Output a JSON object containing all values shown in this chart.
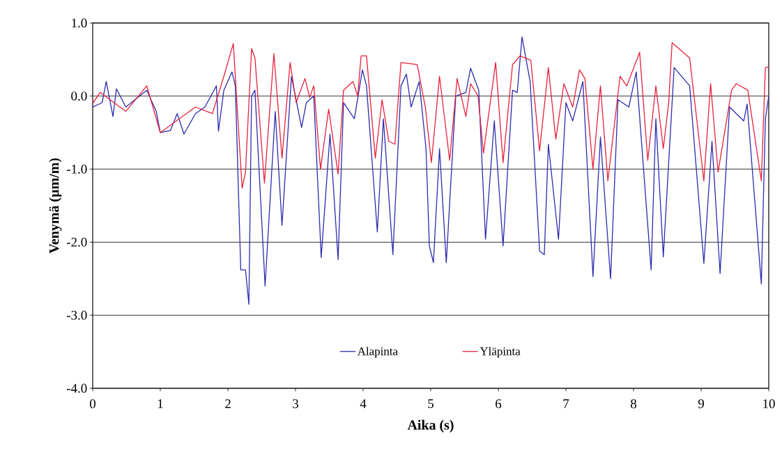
{
  "chart_data": {
    "type": "line",
    "xlabel": "Aika (s)",
    "ylabel": "Venymä (µm/m)",
    "xlim": [
      0,
      10
    ],
    "xticks": [
      0,
      1,
      2,
      3,
      4,
      5,
      6,
      7,
      8,
      9,
      10
    ],
    "ylim": [
      -4,
      1
    ],
    "yticks": [
      {
        "value": -4,
        "label": "-4.0"
      },
      {
        "value": -3,
        "label": "-3.0"
      },
      {
        "value": -2,
        "label": "-2.0"
      },
      {
        "value": -1,
        "label": "-1.0"
      },
      {
        "value": 0,
        "label": "0.0"
      },
      {
        "value": 1,
        "label": "1.0"
      }
    ],
    "grid": "y",
    "legend": "bottom",
    "marker": "none",
    "line_style": "solid",
    "series": [
      {
        "name": "Alapinta",
        "color": "#2b2bb0",
        "x": [
          0.0,
          0.14,
          0.2,
          0.3,
          0.35,
          0.49,
          0.8,
          0.94,
          1.0,
          1.15,
          1.25,
          1.35,
          1.52,
          1.66,
          1.83,
          1.86,
          1.94,
          2.06,
          2.11,
          2.19,
          2.26,
          2.31,
          2.35,
          2.4,
          2.55,
          2.7,
          2.8,
          2.94,
          3.09,
          3.16,
          3.27,
          3.38,
          3.51,
          3.63,
          3.71,
          3.87,
          3.99,
          4.05,
          4.21,
          4.3,
          4.44,
          4.56,
          4.64,
          4.71,
          4.83,
          4.93,
          4.98,
          5.04,
          5.13,
          5.23,
          5.37,
          5.52,
          5.59,
          5.71,
          5.81,
          5.94,
          6.07,
          6.21,
          6.28,
          6.35,
          6.47,
          6.61,
          6.68,
          6.74,
          6.89,
          7.0,
          7.1,
          7.25,
          7.4,
          7.51,
          7.66,
          7.77,
          7.93,
          8.04,
          8.26,
          8.33,
          8.44,
          8.6,
          8.83,
          9.04,
          9.16,
          9.28,
          9.42,
          9.63,
          9.68,
          9.89,
          9.95,
          10.0
        ],
        "values": [
          -0.15,
          -0.09,
          0.2,
          -0.28,
          0.1,
          -0.15,
          0.08,
          -0.21,
          -0.5,
          -0.47,
          -0.24,
          -0.52,
          -0.24,
          -0.15,
          0.14,
          -0.48,
          0.08,
          0.33,
          0.14,
          -2.38,
          -2.38,
          -2.85,
          0.0,
          0.08,
          -2.6,
          -0.21,
          -1.77,
          0.27,
          -0.43,
          -0.09,
          0.0,
          -2.21,
          -0.52,
          -2.24,
          -0.09,
          -0.31,
          0.36,
          0.14,
          -1.86,
          -0.31,
          -2.17,
          0.14,
          0.3,
          -0.15,
          0.2,
          -0.72,
          -2.05,
          -2.28,
          -0.72,
          -2.28,
          0.0,
          0.05,
          0.38,
          0.08,
          -1.96,
          -0.34,
          -2.05,
          0.08,
          0.05,
          0.81,
          0.2,
          -2.12,
          -2.17,
          -0.66,
          -1.96,
          -0.09,
          -0.34,
          0.2,
          -2.47,
          -0.56,
          -2.5,
          -0.05,
          -0.15,
          0.33,
          -2.38,
          -0.31,
          -2.2,
          0.39,
          0.14,
          -2.29,
          -0.62,
          -2.43,
          -0.15,
          -0.34,
          -0.11,
          -2.57,
          -0.31,
          0.0
        ]
      },
      {
        "name": "Yläpinta",
        "color": "#e8203a",
        "x": [
          0.0,
          0.11,
          0.49,
          0.8,
          1.0,
          1.52,
          1.77,
          1.94,
          2.08,
          2.21,
          2.26,
          2.35,
          2.4,
          2.54,
          2.68,
          2.8,
          2.92,
          3.01,
          3.14,
          3.21,
          3.27,
          3.37,
          3.49,
          3.63,
          3.71,
          3.85,
          3.92,
          3.97,
          4.05,
          4.18,
          4.28,
          4.38,
          4.47,
          4.56,
          4.8,
          4.92,
          5.01,
          5.13,
          5.28,
          5.39,
          5.52,
          5.59,
          5.7,
          5.78,
          5.96,
          6.07,
          6.21,
          6.32,
          6.48,
          6.61,
          6.74,
          6.85,
          6.97,
          7.1,
          7.2,
          7.28,
          7.4,
          7.51,
          7.62,
          7.8,
          7.9,
          8.09,
          8.21,
          8.33,
          8.44,
          8.52,
          8.57,
          8.83,
          9.04,
          9.14,
          9.25,
          9.45,
          9.52,
          9.69,
          9.89,
          9.95,
          10.0
        ],
        "values": [
          -0.1,
          0.05,
          -0.21,
          0.14,
          -0.5,
          -0.15,
          -0.24,
          0.27,
          0.72,
          -1.26,
          -1.04,
          0.65,
          0.52,
          -1.19,
          0.58,
          -0.85,
          0.46,
          -0.09,
          0.24,
          -0.02,
          0.14,
          -1.0,
          -0.18,
          -1.07,
          0.08,
          0.2,
          0.0,
          0.55,
          0.55,
          -0.85,
          -0.05,
          -0.62,
          -0.66,
          0.46,
          0.43,
          -0.15,
          -0.91,
          0.27,
          -0.88,
          0.24,
          -0.28,
          0.17,
          0.0,
          -0.78,
          0.46,
          -0.91,
          0.43,
          0.55,
          0.49,
          -0.75,
          0.39,
          -0.59,
          0.17,
          -0.15,
          0.36,
          0.24,
          -1.0,
          0.14,
          -1.16,
          0.27,
          0.14,
          0.6,
          -0.88,
          0.14,
          -0.72,
          -0.09,
          0.73,
          0.52,
          -1.16,
          0.17,
          -1.04,
          0.08,
          0.17,
          0.08,
          -1.16,
          0.39,
          0.4
        ]
      }
    ]
  }
}
